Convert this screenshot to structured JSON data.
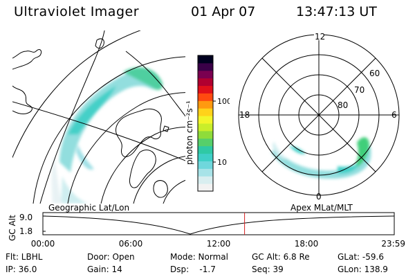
{
  "header": {
    "title": "Ultraviolet Imager",
    "date": "01 Apr 07",
    "time": "13:47:13 UT"
  },
  "colorbar": {
    "unit_label": "photon cm⁻²s⁻¹",
    "tick_100": "100",
    "tick_10": "10",
    "colors": [
      "#f2f2f2",
      "#d9eef0",
      "#a8e3e8",
      "#6fd7dc",
      "#3fcfc7",
      "#2fc9a5",
      "#56cf6a",
      "#8fdc3a",
      "#c9ee2a",
      "#f2f52a",
      "#ffd21a",
      "#ff9a10",
      "#ff4a10",
      "#e0101a",
      "#b00030",
      "#7a0050",
      "#3a0048",
      "#000020"
    ]
  },
  "polar_plot": {
    "label_top": "12",
    "label_bottom": "0",
    "label_left": "18",
    "label_right": "6",
    "label_60": "60",
    "label_70": "70",
    "label_80": "80"
  },
  "timeline": {
    "axis_title": "GC Alt",
    "y_top": "9.0",
    "y_bottom": "1.8",
    "left_caption": "Geographic Lat/Lon",
    "right_caption": "Apex MLat/MLT",
    "ticks": [
      "00:00",
      "06:00",
      "12:00",
      "18:00",
      "23:59"
    ],
    "current_time_fraction": 0.574,
    "line_color": "#d42020"
  },
  "info": {
    "filter": "Flt: LBHL",
    "ip": "IP: 36.0",
    "door": "Door: Open",
    "gain": "Gain: 14",
    "mode": "Mode: Normal",
    "dsp": "Dsp:    -1.7",
    "gc_alt": "GC Alt: 6.8 Re",
    "seq": "Seq: 39",
    "glat": "GLat: -59.6",
    "glon": "GLon: 138.9"
  }
}
